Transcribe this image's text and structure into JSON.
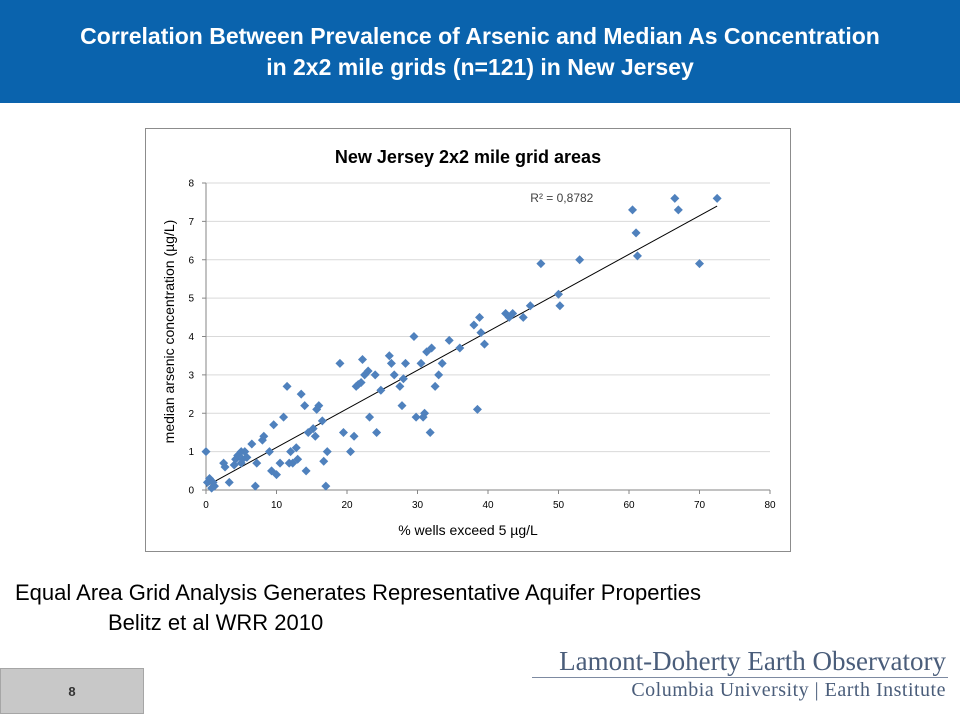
{
  "header": {
    "line1": "Correlation Between Prevalence of Arsenic and Median As Concentration",
    "line2": "in 2x2 mile grids (n=121) in New Jersey"
  },
  "caption": {
    "line1": "Equal Area Grid Analysis Generates Representative Aquifer Properties",
    "line2": "Belitz et al WRR 2010"
  },
  "slide_number": "8",
  "logo": {
    "line1": "Lamont-Doherty Earth Observatory",
    "line2": "Columbia University | Earth Institute"
  },
  "colors": {
    "header_bg": "#0a63ad",
    "marker": "#4f81bd",
    "trendline": "#000000",
    "gridline": "#d9d9d9"
  },
  "chart_data": {
    "type": "scatter",
    "title": "New Jersey 2x2 mile grid areas",
    "xlabel": "% wells exceed 5 µg/L",
    "ylabel": "median arsenic concentration (µg/L)",
    "xlim": [
      0,
      80
    ],
    "ylim": [
      0,
      8
    ],
    "xticks": [
      0,
      10,
      20,
      30,
      40,
      50,
      60,
      70,
      80
    ],
    "yticks": [
      0,
      1,
      2,
      3,
      4,
      5,
      6,
      7,
      8
    ],
    "grid": "horizontal",
    "legend": "none",
    "annotation": "R² = 0,8782",
    "trendline": {
      "x": [
        0,
        72.5
      ],
      "y": [
        0.1,
        7.4
      ]
    },
    "series": [
      {
        "x": [
          0,
          0.2,
          0.5,
          0.8,
          1,
          1.2,
          2.5,
          2.7,
          3.3,
          4,
          4.2,
          4.5,
          5,
          5,
          5.2,
          5.5,
          5.8,
          6.5,
          7,
          7.2,
          8,
          8.2,
          9,
          9.3,
          9.6,
          10,
          10.5,
          11,
          11.5,
          11.8,
          12,
          12.3,
          12.8,
          13,
          13.5,
          14,
          14.2,
          14.5,
          15.2,
          15.5,
          15.7,
          16,
          16.5,
          16.7,
          17,
          17.2,
          19,
          19.5,
          20.5,
          21,
          21.3,
          21.6,
          22,
          22.2,
          22.5,
          23,
          23.2,
          24,
          24.2,
          24.8,
          26,
          26.3,
          26.7,
          27.5,
          27.8,
          28,
          28.3,
          29.5,
          29.8,
          30.5,
          30.8,
          31,
          31.3,
          31.8,
          32,
          32.5,
          33,
          33.5,
          34.5,
          36,
          38,
          38.5,
          38.8,
          39,
          39.5,
          42.5,
          43,
          43.5,
          45,
          46,
          47.5,
          50,
          50.2,
          53,
          60.5,
          61,
          61.2,
          66.5,
          67,
          70,
          72.5
        ],
        "y": [
          1.0,
          0.2,
          0.3,
          0.05,
          0.2,
          0.1,
          0.7,
          0.6,
          0.2,
          0.65,
          0.8,
          0.9,
          0.7,
          1.0,
          0.8,
          1.0,
          0.85,
          1.2,
          0.1,
          0.7,
          1.3,
          1.4,
          1.0,
          0.5,
          1.7,
          0.4,
          0.7,
          1.9,
          2.7,
          0.7,
          1.0,
          0.7,
          1.1,
          0.8,
          2.5,
          2.2,
          0.5,
          1.5,
          1.6,
          1.4,
          2.1,
          2.2,
          1.8,
          0.75,
          0.1,
          1.0,
          3.3,
          1.5,
          1.0,
          1.4,
          2.7,
          2.75,
          2.8,
          3.4,
          3.0,
          3.1,
          1.9,
          3.0,
          1.5,
          2.6,
          3.5,
          3.3,
          3.0,
          2.7,
          2.2,
          2.9,
          3.3,
          4.0,
          1.9,
          3.3,
          1.9,
          2.0,
          3.6,
          1.5,
          3.7,
          2.7,
          3.0,
          3.3,
          3.9,
          3.7,
          4.3,
          2.1,
          4.5,
          4.1,
          3.8,
          4.6,
          4.5,
          4.6,
          4.5,
          4.8,
          5.9,
          5.1,
          4.8,
          6.0,
          7.3,
          6.7,
          6.1,
          7.6,
          7.3,
          5.9,
          7.6
        ]
      }
    ]
  }
}
